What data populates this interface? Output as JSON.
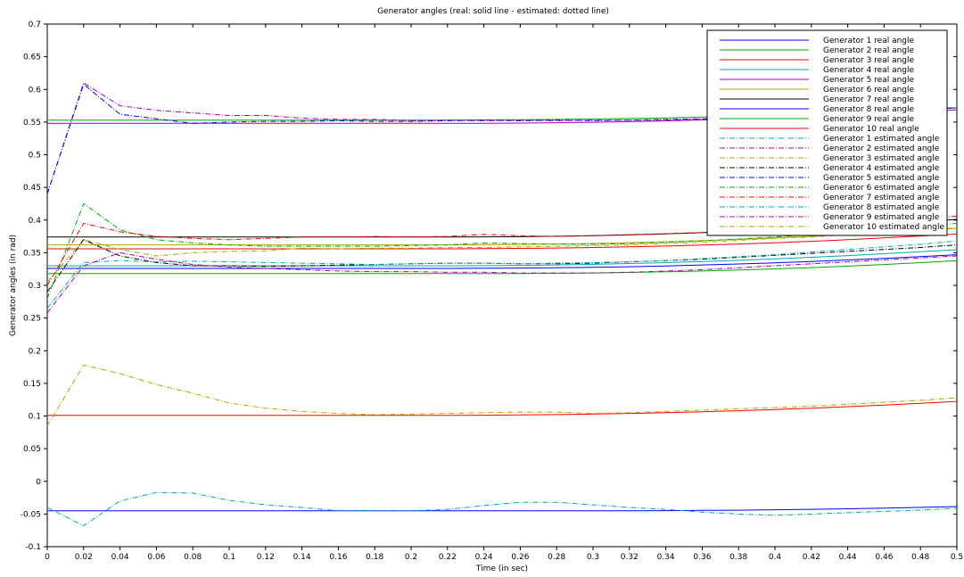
{
  "chart_data": {
    "type": "line",
    "title": "Generator angles (real: solid line - estimated: dotted line)",
    "xlabel": "Time (in sec)",
    "ylabel": "Generator angles (in rad)",
    "xlim": [
      0,
      0.5
    ],
    "ylim": [
      -0.1,
      0.7
    ],
    "xticks": [
      0,
      0.02,
      0.04,
      0.06,
      0.08,
      0.1,
      0.12,
      0.14,
      0.16,
      0.18,
      0.2,
      0.22,
      0.24,
      0.26,
      0.28,
      0.3,
      0.32,
      0.34,
      0.36,
      0.38,
      0.4,
      0.42,
      0.44,
      0.46,
      0.48,
      0.5
    ],
    "yticks": [
      -0.1,
      -0.05,
      0,
      0.05,
      0.1,
      0.15,
      0.2,
      0.25,
      0.3,
      0.35,
      0.4,
      0.45,
      0.5,
      0.55,
      0.6,
      0.65,
      0.7
    ],
    "xtick_labels": [
      "0",
      "0.02",
      "0.04",
      "0.06",
      "0.08",
      "0.1",
      "0.12",
      "0.14",
      "0.16",
      "0.18",
      "0.2",
      "0.22",
      "0.24",
      "0.26",
      "0.28",
      "0.3",
      "0.32",
      "0.34",
      "0.36",
      "0.38",
      "0.4",
      "0.42",
      "0.44",
      "0.46",
      "0.48",
      "0.5"
    ],
    "ytick_labels": [
      "-0.1",
      "-0.05",
      "0",
      "0.05",
      "0.1",
      "0.15",
      "0.2",
      "0.25",
      "0.3",
      "0.35",
      "0.4",
      "0.45",
      "0.5",
      "0.55",
      "0.6",
      "0.65",
      "0.7"
    ],
    "grid": false,
    "legend_position": "top-right",
    "x": [
      0,
      0.02,
      0.04,
      0.06,
      0.08,
      0.1,
      0.12,
      0.14,
      0.16,
      0.18,
      0.2,
      0.22,
      0.24,
      0.26,
      0.28,
      0.3,
      0.32,
      0.34,
      0.36,
      0.38,
      0.4,
      0.42,
      0.44,
      0.46,
      0.48,
      0.5
    ],
    "series": [
      {
        "name": "Generator 1 real angle",
        "color": "#0000ff",
        "style": "solid",
        "values": [
          -0.045,
          -0.045,
          -0.045,
          -0.045,
          -0.045,
          -0.045,
          -0.045,
          -0.045,
          -0.045,
          -0.045,
          -0.045,
          -0.045,
          -0.045,
          -0.045,
          -0.045,
          -0.045,
          -0.045,
          -0.0448,
          -0.0445,
          -0.0441,
          -0.0435,
          -0.0428,
          -0.042,
          -0.041,
          -0.0398,
          -0.0385
        ]
      },
      {
        "name": "Generator 2 real angle",
        "color": "#00aa00",
        "style": "solid",
        "values": [
          0.318,
          0.318,
          0.318,
          0.318,
          0.318,
          0.318,
          0.318,
          0.318,
          0.318,
          0.318,
          0.318,
          0.318,
          0.318,
          0.3182,
          0.3185,
          0.319,
          0.3198,
          0.3208,
          0.322,
          0.3235,
          0.3252,
          0.3272,
          0.3295,
          0.332,
          0.3348,
          0.3378
        ]
      },
      {
        "name": "Generator 3 real angle",
        "color": "#ff0000",
        "style": "solid",
        "values": [
          0.356,
          0.356,
          0.356,
          0.356,
          0.356,
          0.356,
          0.356,
          0.356,
          0.356,
          0.356,
          0.356,
          0.356,
          0.3562,
          0.3566,
          0.3572,
          0.358,
          0.359,
          0.3602,
          0.3617,
          0.3634,
          0.3653,
          0.3675,
          0.37,
          0.3727,
          0.3756,
          0.3787
        ]
      },
      {
        "name": "Generator 4 real angle",
        "color": "#00aaaa",
        "style": "solid",
        "values": [
          0.33,
          0.33,
          0.33,
          0.33,
          0.33,
          0.33,
          0.33,
          0.33,
          0.33,
          0.33,
          0.33,
          0.33,
          0.3302,
          0.3306,
          0.3312,
          0.3322,
          0.3334,
          0.3348,
          0.3365,
          0.3384,
          0.3406,
          0.343,
          0.3456,
          0.3484,
          0.3514,
          0.3546
        ]
      },
      {
        "name": "Generator 5 real angle",
        "color": "#aa00aa",
        "style": "solid",
        "values": [
          0.548,
          0.548,
          0.548,
          0.548,
          0.548,
          0.548,
          0.548,
          0.548,
          0.548,
          0.548,
          0.548,
          0.548,
          0.5482,
          0.5485,
          0.549,
          0.5497,
          0.5506,
          0.5518,
          0.5532,
          0.5548,
          0.5566,
          0.5586,
          0.5608,
          0.5632,
          0.5658,
          0.5686
        ]
      },
      {
        "name": "Generator 6 real angle",
        "color": "#aaaa00",
        "style": "solid",
        "values": [
          0.362,
          0.362,
          0.362,
          0.362,
          0.362,
          0.362,
          0.362,
          0.362,
          0.362,
          0.362,
          0.362,
          0.362,
          0.3622,
          0.3626,
          0.3633,
          0.3642,
          0.3654,
          0.3668,
          0.3685,
          0.3705,
          0.3727,
          0.3752,
          0.3779,
          0.3808,
          0.384,
          0.3874
        ]
      },
      {
        "name": "Generator 7 real angle",
        "color": "#000000",
        "style": "solid",
        "values": [
          0.374,
          0.374,
          0.374,
          0.374,
          0.374,
          0.374,
          0.374,
          0.374,
          0.374,
          0.374,
          0.374,
          0.374,
          0.3742,
          0.3746,
          0.3752,
          0.3762,
          0.3774,
          0.3789,
          0.3807,
          0.3828,
          0.3852,
          0.3878,
          0.3907,
          0.3939,
          0.3973,
          0.401
        ]
      },
      {
        "name": "Generator 8 real angle",
        "color": "#0000ff",
        "style": "solid",
        "values": [
          0.326,
          0.326,
          0.326,
          0.326,
          0.326,
          0.326,
          0.326,
          0.326,
          0.326,
          0.326,
          0.326,
          0.326,
          0.3262,
          0.3265,
          0.327,
          0.3277,
          0.3286,
          0.3298,
          0.3312,
          0.3328,
          0.3346,
          0.3366,
          0.3389,
          0.3414,
          0.3441,
          0.347
        ]
      },
      {
        "name": "Generator 9 real angle",
        "color": "#00aa00",
        "style": "solid",
        "values": [
          0.553,
          0.553,
          0.553,
          0.553,
          0.553,
          0.553,
          0.553,
          0.553,
          0.553,
          0.553,
          0.553,
          0.553,
          0.5532,
          0.5535,
          0.554,
          0.5546,
          0.5554,
          0.5564,
          0.5576,
          0.559,
          0.5606,
          0.5624,
          0.5644,
          0.5666,
          0.569,
          0.5716
        ]
      },
      {
        "name": "Generator 10 real angle",
        "color": "#ff0000",
        "style": "solid",
        "values": [
          0.101,
          0.101,
          0.101,
          0.101,
          0.101,
          0.101,
          0.101,
          0.101,
          0.101,
          0.101,
          0.101,
          0.101,
          0.1012,
          0.1016,
          0.1022,
          0.103,
          0.104,
          0.1052,
          0.1066,
          0.1082,
          0.11,
          0.112,
          0.1143,
          0.1168,
          0.1195,
          0.1224
        ]
      },
      {
        "name": "Generator 1 estimated angle",
        "color": "#00aaaa",
        "style": "dashdot",
        "values": [
          -0.04,
          -0.068,
          -0.03,
          -0.017,
          -0.018,
          -0.029,
          -0.036,
          -0.04,
          -0.045,
          -0.045,
          -0.045,
          -0.043,
          -0.037,
          -0.032,
          -0.032,
          -0.036,
          -0.04,
          -0.043,
          -0.047,
          -0.05,
          -0.052,
          -0.05,
          -0.048,
          -0.046,
          -0.044,
          -0.041
        ]
      },
      {
        "name": "Generator 2 estimated angle",
        "color": "#aa00aa",
        "style": "dashdot",
        "values": [
          0.44,
          0.61,
          0.575,
          0.568,
          0.564,
          0.56,
          0.56,
          0.556,
          0.554,
          0.554,
          0.552,
          0.553,
          0.552,
          0.553,
          0.552,
          0.553,
          0.553,
          0.553,
          0.554,
          0.556,
          0.559,
          0.562,
          0.564,
          0.566,
          0.569,
          0.572
        ]
      },
      {
        "name": "Generator 3 estimated angle",
        "color": "#aaaa00",
        "style": "dashdot",
        "values": [
          0.305,
          0.37,
          0.355,
          0.345,
          0.35,
          0.352,
          0.353,
          0.357,
          0.356,
          0.357,
          0.357,
          0.358,
          0.358,
          0.359,
          0.36,
          0.361,
          0.362,
          0.364,
          0.366,
          0.369,
          0.372,
          0.374,
          0.378,
          0.381,
          0.385,
          0.388
        ]
      },
      {
        "name": "Generator 4 estimated angle",
        "color": "#000000",
        "style": "dashdot",
        "values": [
          0.29,
          0.37,
          0.345,
          0.335,
          0.33,
          0.33,
          0.329,
          0.33,
          0.331,
          0.332,
          0.333,
          0.334,
          0.334,
          0.333,
          0.333,
          0.334,
          0.336,
          0.338,
          0.34,
          0.343,
          0.346,
          0.349,
          0.352,
          0.355,
          0.358,
          0.362
        ]
      },
      {
        "name": "Generator 5 estimated angle",
        "color": "#0000ff",
        "style": "dashdot",
        "values": [
          0.44,
          0.608,
          0.562,
          0.555,
          0.548,
          0.55,
          0.551,
          0.551,
          0.552,
          0.551,
          0.551,
          0.552,
          0.553,
          0.552,
          0.553,
          0.552,
          0.553,
          0.554,
          0.555,
          0.557,
          0.56,
          0.562,
          0.565,
          0.567,
          0.57,
          0.572
        ]
      },
      {
        "name": "Generator 6 estimated angle",
        "color": "#00aa00",
        "style": "dashdot",
        "values": [
          0.28,
          0.425,
          0.385,
          0.37,
          0.365,
          0.362,
          0.36,
          0.36,
          0.36,
          0.36,
          0.361,
          0.362,
          0.365,
          0.364,
          0.363,
          0.363,
          0.364,
          0.366,
          0.368,
          0.371,
          0.374,
          0.378,
          0.382,
          0.386,
          0.39,
          0.395
        ]
      },
      {
        "name": "Generator 7 estimated angle",
        "color": "#ff0000",
        "style": "dashdot",
        "values": [
          0.3,
          0.395,
          0.382,
          0.375,
          0.372,
          0.37,
          0.372,
          0.374,
          0.374,
          0.375,
          0.374,
          0.375,
          0.378,
          0.376,
          0.375,
          0.376,
          0.377,
          0.379,
          0.381,
          0.384,
          0.387,
          0.39,
          0.394,
          0.398,
          0.402,
          0.406
        ]
      },
      {
        "name": "Generator 8 estimated angle",
        "color": "#00aaaa",
        "style": "dashdot",
        "values": [
          0.265,
          0.335,
          0.338,
          0.336,
          0.337,
          0.336,
          0.335,
          0.334,
          0.333,
          0.332,
          0.333,
          0.334,
          0.334,
          0.333,
          0.334,
          0.335,
          0.336,
          0.338,
          0.341,
          0.344,
          0.347,
          0.351,
          0.355,
          0.359,
          0.363,
          0.368
        ]
      },
      {
        "name": "Generator 9 estimated angle",
        "color": "#aa00aa",
        "style": "dashdot",
        "values": [
          0.258,
          0.33,
          0.35,
          0.34,
          0.332,
          0.328,
          0.326,
          0.324,
          0.322,
          0.321,
          0.321,
          0.32,
          0.32,
          0.319,
          0.319,
          0.319,
          0.32,
          0.322,
          0.324,
          0.327,
          0.33,
          0.333,
          0.336,
          0.339,
          0.342,
          0.345
        ]
      },
      {
        "name": "Generator 10 estimated angle",
        "color": "#aaaa00",
        "style": "dashdot",
        "values": [
          0.085,
          0.178,
          0.165,
          0.148,
          0.135,
          0.12,
          0.112,
          0.107,
          0.104,
          0.102,
          0.103,
          0.104,
          0.105,
          0.106,
          0.106,
          0.104,
          0.105,
          0.107,
          0.109,
          0.111,
          0.113,
          0.115,
          0.118,
          0.121,
          0.124,
          0.128
        ]
      }
    ]
  }
}
